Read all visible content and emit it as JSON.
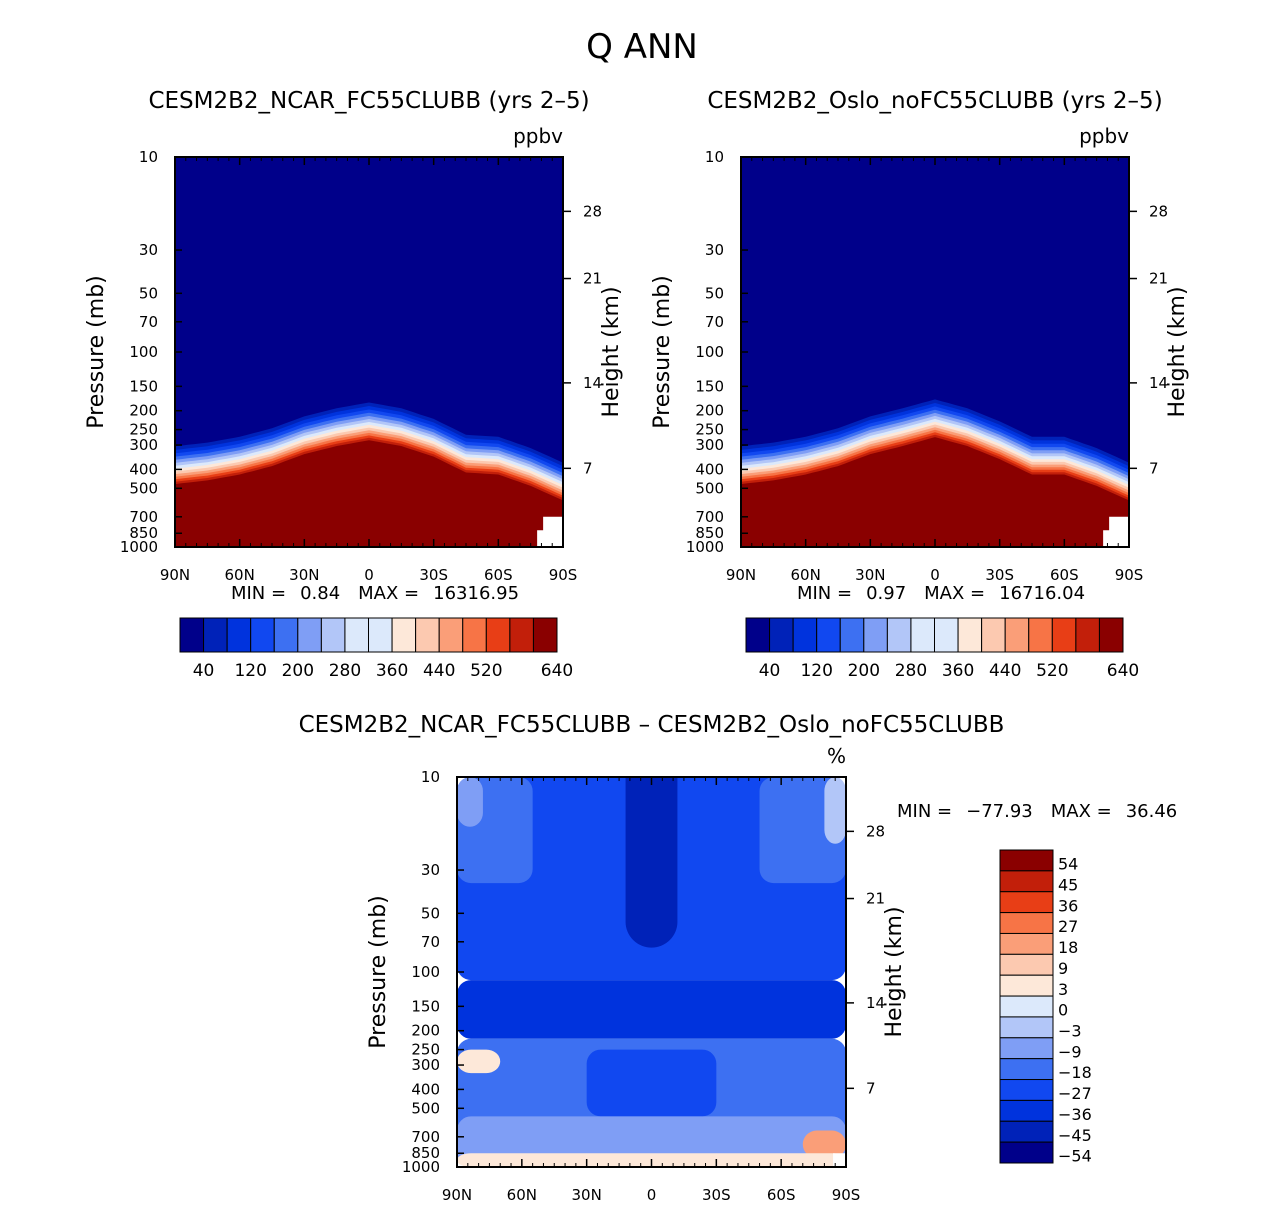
{
  "figure": {
    "title": "Q ANN",
    "diff_title": "CESM2B2_NCAR_FC55CLUBB – CESM2B2_Oslo_noFC55CLUBB"
  },
  "colors": {
    "ramp_abs": [
      "#00008a",
      "#0022b8",
      "#0033dd",
      "#1148f0",
      "#3d70f2",
      "#7f9ef5",
      "#b2c6f8",
      "#dce9fb",
      "#fde8d9",
      "#fcc9b0",
      "#fa9e78",
      "#f77446",
      "#e83e16",
      "#c21f0a",
      "#8a0000"
    ],
    "ramp_diff": [
      "#00008a",
      "#0022b8",
      "#0033dd",
      "#1148f0",
      "#3d70f2",
      "#7f9ef5",
      "#b2c6f8",
      "#dce9fb",
      "#fde8d9",
      "#fcc9b0",
      "#fa9e78",
      "#f77446",
      "#e83e16",
      "#c21f0a",
      "#8a0000"
    ],
    "missing": "#ffffff"
  },
  "chart_data": [
    {
      "id": "ncar",
      "type": "heatmap",
      "title": "CESM2B2_NCAR_FC55CLUBB (yrs 2–5)",
      "units": "ppbv",
      "xlabel": "",
      "ylabel": "Pressure (mb)",
      "ylabel_right": "Height (km)",
      "x_ticks": [
        "90N",
        "60N",
        "30N",
        "0",
        "30S",
        "60S",
        "90S"
      ],
      "x_values": [
        90,
        60,
        30,
        0,
        -30,
        -60,
        -90
      ],
      "xlim": [
        90,
        -90
      ],
      "y_ticks": [
        "10",
        "30",
        "50",
        "70",
        "100",
        "150",
        "200",
        "250",
        "300",
        "400",
        "500",
        "700",
        "850",
        "1000"
      ],
      "y_values": [
        10,
        30,
        50,
        70,
        100,
        150,
        200,
        250,
        300,
        400,
        500,
        700,
        850,
        1000
      ],
      "ylim": [
        1000,
        10
      ],
      "y_scale": "log",
      "y_right_ticks": [
        "28",
        "21",
        "14",
        "7"
      ],
      "y_right_pressure": [
        19,
        42,
        144,
        395
      ],
      "stats": {
        "min_label": "MIN =",
        "min": "0.84",
        "max_label": "MAX =",
        "max": "16316.95"
      },
      "levels": [
        0,
        40,
        80,
        120,
        160,
        200,
        240,
        280,
        320,
        360,
        400,
        440,
        480,
        520,
        560,
        600,
        640
      ],
      "colorbar_labels": [
        "40",
        "120",
        "200",
        "280",
        "360",
        "440",
        "520",
        "640"
      ],
      "profile_lat": [
        90,
        75,
        60,
        45,
        30,
        15,
        0,
        -15,
        -30,
        -45,
        -60,
        -75,
        -90
      ],
      "profile_p": [
        470,
        450,
        420,
        380,
        330,
        300,
        280,
        300,
        340,
        410,
        420,
        480,
        570
      ]
    },
    {
      "id": "oslo",
      "type": "heatmap",
      "title": "CESM2B2_Oslo_noFC55CLUBB (yrs 2–5)",
      "units": "ppbv",
      "xlabel": "",
      "ylabel": "Pressure (mb)",
      "ylabel_right": "Height (km)",
      "x_ticks": [
        "90N",
        "60N",
        "30N",
        "0",
        "30S",
        "60S",
        "90S"
      ],
      "x_values": [
        90,
        60,
        30,
        0,
        -30,
        -60,
        -90
      ],
      "xlim": [
        90,
        -90
      ],
      "y_ticks": [
        "10",
        "30",
        "50",
        "70",
        "100",
        "150",
        "200",
        "250",
        "300",
        "400",
        "500",
        "700",
        "850",
        "1000"
      ],
      "y_values": [
        10,
        30,
        50,
        70,
        100,
        150,
        200,
        250,
        300,
        400,
        500,
        700,
        850,
        1000
      ],
      "ylim": [
        1000,
        10
      ],
      "y_scale": "log",
      "y_right_ticks": [
        "28",
        "21",
        "14",
        "7"
      ],
      "y_right_pressure": [
        19,
        42,
        144,
        395
      ],
      "stats": {
        "min_label": "MIN =",
        "min": "0.97",
        "max_label": "MAX =",
        "max": "16716.04"
      },
      "levels": [
        0,
        40,
        80,
        120,
        160,
        200,
        240,
        280,
        320,
        360,
        400,
        440,
        480,
        520,
        560,
        600,
        640
      ],
      "colorbar_labels": [
        "40",
        "120",
        "200",
        "280",
        "360",
        "440",
        "520",
        "640"
      ],
      "profile_lat": [
        90,
        75,
        60,
        45,
        30,
        15,
        0,
        -15,
        -30,
        -45,
        -60,
        -75,
        -90
      ],
      "profile_p": [
        470,
        450,
        420,
        380,
        330,
        300,
        270,
        300,
        350,
        420,
        420,
        480,
        570
      ]
    },
    {
      "id": "diff",
      "type": "heatmap",
      "title": "CESM2B2_NCAR_FC55CLUBB – CESM2B2_Oslo_noFC55CLUBB",
      "units": "%",
      "xlabel": "",
      "ylabel": "Pressure (mb)",
      "ylabel_right": "Height (km)",
      "x_ticks": [
        "90N",
        "60N",
        "30N",
        "0",
        "30S",
        "60S",
        "90S"
      ],
      "x_values": [
        90,
        60,
        30,
        0,
        -30,
        -60,
        -90
      ],
      "xlim": [
        90,
        -90
      ],
      "y_ticks": [
        "10",
        "30",
        "50",
        "70",
        "100",
        "150",
        "200",
        "250",
        "300",
        "400",
        "500",
        "700",
        "850",
        "1000"
      ],
      "y_values": [
        10,
        30,
        50,
        70,
        100,
        150,
        200,
        250,
        300,
        400,
        500,
        700,
        850,
        1000
      ],
      "ylim": [
        1000,
        10
      ],
      "y_scale": "log",
      "y_right_ticks": [
        "28",
        "21",
        "14",
        "7"
      ],
      "y_right_pressure": [
        19,
        42,
        144,
        395
      ],
      "stats": {
        "min_label": "MIN =",
        "min": "−77.93",
        "max_label": "MAX =",
        "max": "36.46"
      },
      "levels": [
        -54,
        -45,
        -36,
        -27,
        -18,
        -9,
        -3,
        0,
        3,
        9,
        18,
        27,
        36,
        45,
        54
      ],
      "colorbar_labels": [
        "54",
        "45",
        "36",
        "27",
        "18",
        "9",
        "3",
        "0",
        "−3",
        "−9",
        "−18",
        "−27",
        "−36",
        "−45",
        "−54"
      ],
      "regions": [
        {
          "name": "upper-background",
          "lat": [
            90,
            -90
          ],
          "p": [
            10,
            110
          ],
          "value": -27
        },
        {
          "name": "polar-north-upper",
          "lat": [
            90,
            55
          ],
          "p": [
            10,
            35
          ],
          "value": -18
        },
        {
          "name": "polar-south-upper",
          "lat": [
            -50,
            -90
          ],
          "p": [
            10,
            35
          ],
          "value": -18
        },
        {
          "name": "north-pole-light",
          "lat": [
            90,
            78
          ],
          "p": [
            10,
            18
          ],
          "value": -9
        },
        {
          "name": "south-pole-light",
          "lat": [
            -80,
            -90
          ],
          "p": [
            10,
            22
          ],
          "value": -3
        },
        {
          "name": "equatorial-core",
          "lat": [
            7,
            -7
          ],
          "p": [
            10,
            65
          ],
          "value": -54
        },
        {
          "name": "equatorial-ring",
          "lat": [
            12,
            -12
          ],
          "p": [
            10,
            75
          ],
          "value": -45
        },
        {
          "name": "tropopause-band",
          "lat": [
            90,
            -90
          ],
          "p": [
            110,
            220
          ],
          "value": -36
        },
        {
          "name": "troposphere",
          "lat": [
            90,
            -90
          ],
          "p": [
            220,
            1000
          ],
          "value": -18
        },
        {
          "name": "tropical-tropo",
          "lat": [
            30,
            -30
          ],
          "p": [
            250,
            550
          ],
          "value": -27
        },
        {
          "name": "boundary-layer",
          "lat": [
            90,
            -90
          ],
          "p": [
            550,
            1000
          ],
          "value": -9
        },
        {
          "name": "north-lower-warm",
          "lat": [
            90,
            70
          ],
          "p": [
            250,
            330
          ],
          "value": 3
        },
        {
          "name": "south-surface-warm",
          "lat": [
            -70,
            -90
          ],
          "p": [
            650,
            900
          ],
          "value": 18
        },
        {
          "name": "surface-mixed",
          "lat": [
            90,
            -90
          ],
          "p": [
            850,
            1000
          ],
          "value": 3
        }
      ]
    }
  ]
}
